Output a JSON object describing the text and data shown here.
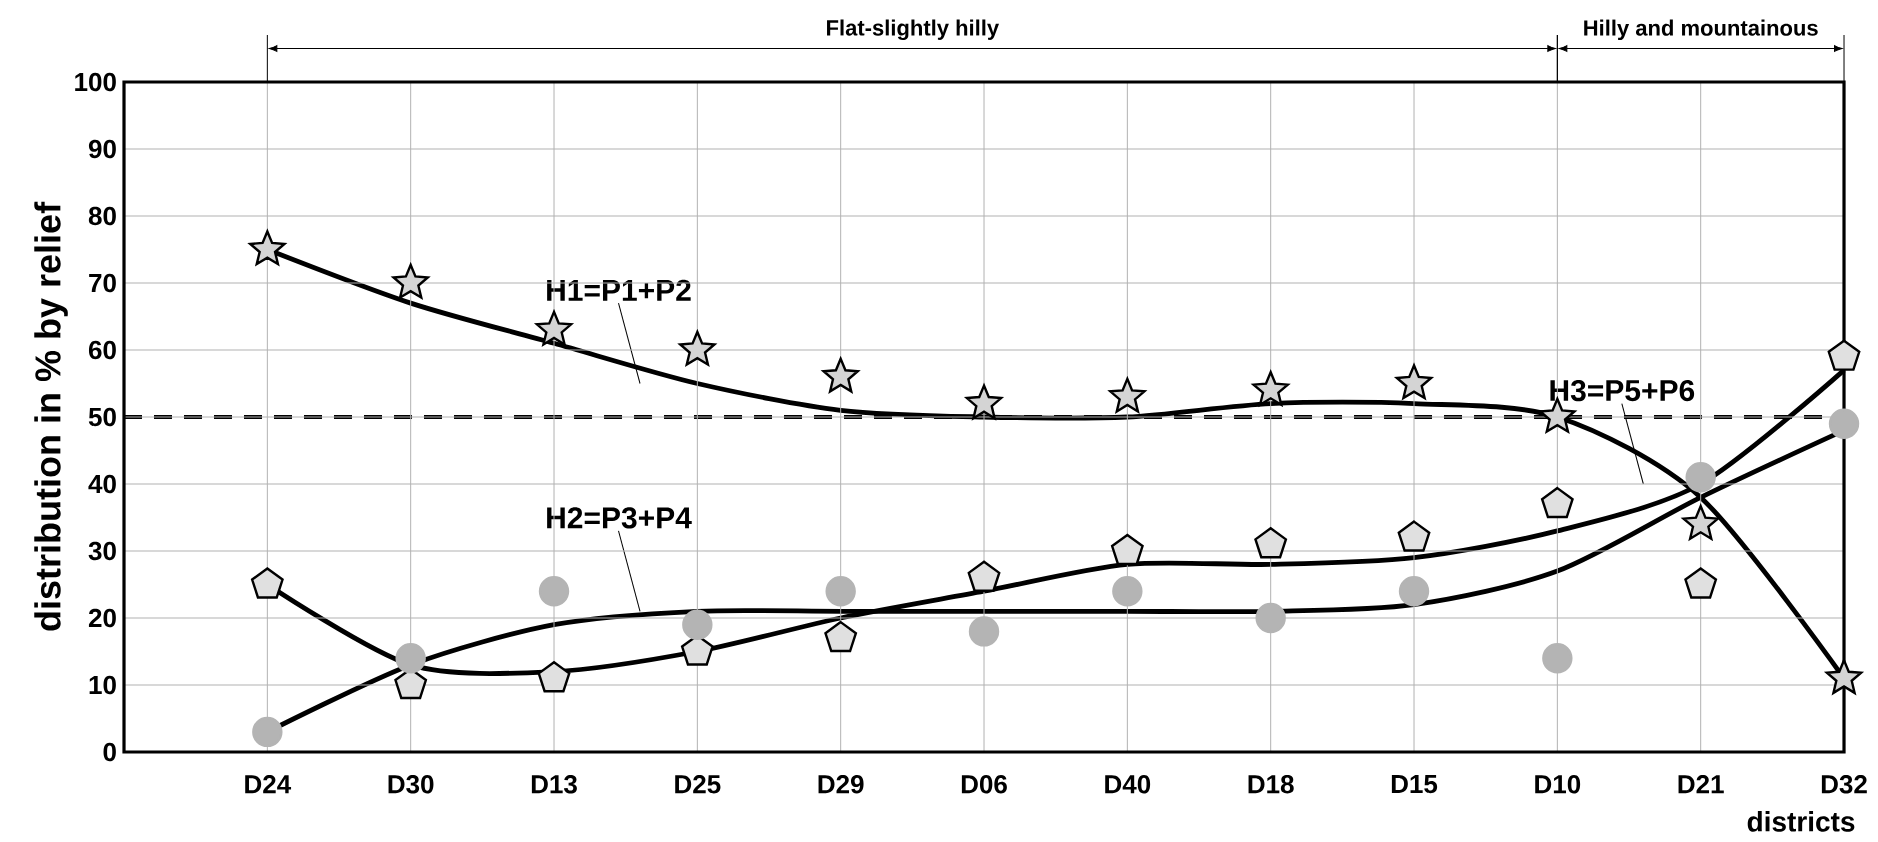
{
  "chart_data": {
    "type": "line",
    "ylabel": "distribution in % by relief",
    "xlabel": "districts",
    "categories": [
      "D24",
      "D30",
      "D13",
      "D25",
      "D29",
      "D06",
      "D40",
      "D18",
      "D15",
      "D10",
      "D21",
      "D32"
    ],
    "series": [
      {
        "type": "scatter",
        "marker": "star",
        "color": "#d4d4d4",
        "values": [
          75,
          70,
          63,
          60,
          56,
          52,
          53,
          54,
          55,
          50,
          34,
          11
        ]
      },
      {
        "type": "scatter",
        "color": "#e0e0e0",
        "values": [
          25,
          10,
          11,
          15,
          17,
          26,
          30,
          31,
          32,
          37,
          25,
          59
        ]
      },
      {
        "type": "scatter",
        "marker": "circle",
        "color": "#b4b4b4",
        "values": [
          3,
          14,
          24,
          19,
          24,
          18,
          24,
          20,
          24,
          14,
          41,
          49
        ]
      },
      {
        "marker": "none",
        "color": "#000000",
        "values": [
          75,
          67,
          61,
          55,
          51,
          50,
          50,
          52,
          52,
          50,
          38,
          11
        ]
      },
      {
        "marker": "none",
        "color": "#000000",
        "values": [
          3,
          13,
          19,
          21,
          21,
          21,
          21,
          21,
          22,
          27,
          38,
          48
        ]
      },
      {
        "marker": "none",
        "color": "#000000",
        "values": [
          25,
          13,
          12,
          15,
          20,
          24,
          28,
          28,
          29,
          33,
          40,
          57
        ]
      }
    ],
    "ylim": [
      0,
      100
    ],
    "yticks": [
      0,
      10,
      20,
      30,
      40,
      50,
      60,
      70,
      80,
      90,
      100
    ],
    "grid": true,
    "line_style": "solid",
    "ref_lines": [
      {
        "axis": "y",
        "value": 50,
        "color": "#000000",
        "line_style": "dashed"
      }
    ],
    "annotations": [
      "Flat-slightly hilly",
      "Hilly and mountainous",
      {
        "text": "H1=P1+P2",
        "x": "D25",
        "y": 55
      },
      {
        "text": "H2=P3+P4",
        "x": "D25",
        "y": 21
      },
      {
        "text": "H3=P5+P6",
        "x": "D21",
        "y": 40
      }
    ]
  }
}
